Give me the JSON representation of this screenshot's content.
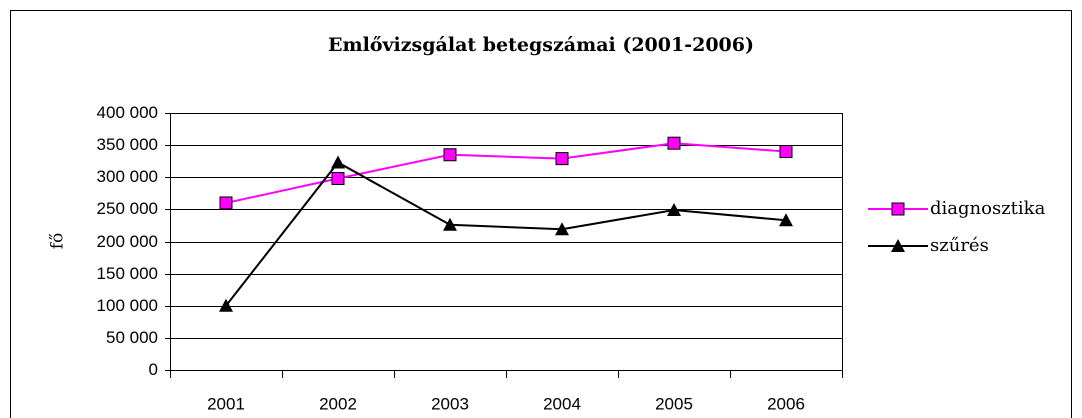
{
  "chart_data": {
    "type": "line",
    "title": "Emlővizsgálat betegszámai (2001-2006)",
    "y_label": "fő",
    "categories": [
      "2001",
      "2002",
      "2003",
      "2004",
      "2005",
      "2006"
    ],
    "series": [
      {
        "name": "diagnosztika",
        "color": "#ff00ff",
        "marker": "square",
        "values": [
          260000,
          298000,
          335000,
          329000,
          353000,
          340000
        ]
      },
      {
        "name": "szűrés",
        "color": "#000000",
        "marker": "triangle",
        "values": [
          100000,
          323000,
          226000,
          219000,
          249000,
          233000
        ]
      }
    ],
    "ylim": [
      0,
      400000
    ],
    "yticks": [
      {
        "value": 0,
        "label": "0"
      },
      {
        "value": 50000,
        "label": "50 000"
      },
      {
        "value": 100000,
        "label": "100 000"
      },
      {
        "value": 150000,
        "label": "150 000"
      },
      {
        "value": 200000,
        "label": "200 000"
      },
      {
        "value": 250000,
        "label": "250 000"
      },
      {
        "value": 300000,
        "label": "300 000"
      },
      {
        "value": 350000,
        "label": "350 000"
      },
      {
        "value": 400000,
        "label": "400 000"
      }
    ],
    "grid": true,
    "legend": "right"
  }
}
